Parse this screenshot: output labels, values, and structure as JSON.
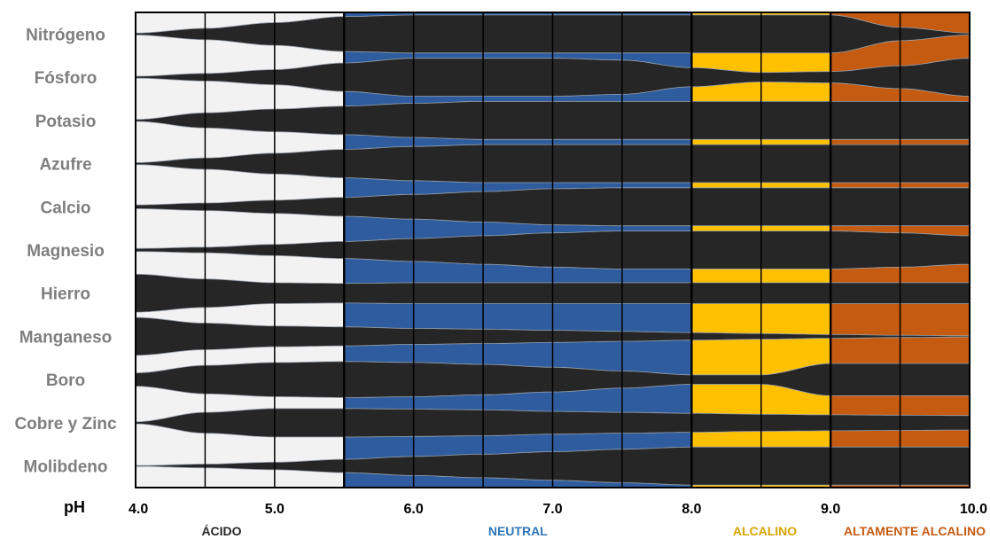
{
  "chart_data": {
    "type": "area",
    "title": "",
    "xlabel": "pH",
    "ylabel": "",
    "xlim": [
      4.0,
      10.0
    ],
    "x_ticks": [
      "4.0",
      "5.0",
      "6.0",
      "7.0",
      "8.0",
      "9.0",
      "10.0"
    ],
    "x_tick_values": [
      4,
      5,
      6,
      7,
      8,
      9,
      10
    ],
    "grid_x": [
      4.5,
      5,
      5.5,
      6,
      6.5,
      7,
      7.5,
      8,
      8.5,
      9,
      9.5
    ],
    "zones": [
      {
        "label": "ÁCIDO",
        "from": 4.0,
        "to": 5.5,
        "color": "#f2f2f2",
        "label_color": "#262626"
      },
      {
        "label": "NEUTRAL",
        "from": 5.5,
        "to": 8.0,
        "color": "#2e5c9e",
        "label_color": "#2e75b6"
      },
      {
        "label": "ALCALINO",
        "from": 8.0,
        "to": 9.0,
        "color": "#ffc000",
        "label_color": "#d6a300"
      },
      {
        "label": "ALTAMENTE ALCALINO",
        "from": 9.0,
        "to": 10.0,
        "color": "#c55a11",
        "label_color": "#c55a11"
      }
    ],
    "band_color": "#262626",
    "series_value_note_scale": [
      0,
      1
    ],
    "series": [
      {
        "name": "Nitrógeno",
        "ph": [
          4.0,
          4.5,
          5.0,
          5.5,
          6.0,
          6.5,
          7.0,
          7.5,
          8.0,
          8.5,
          9.0,
          9.5,
          10.0
        ],
        "availability": [
          0.05,
          0.3,
          0.6,
          0.92,
          1.0,
          1.0,
          1.0,
          1.0,
          1.0,
          1.0,
          1.0,
          0.35,
          0.05
        ]
      },
      {
        "name": "Fósforo",
        "ph": [
          4.0,
          4.5,
          5.0,
          5.5,
          6.0,
          6.5,
          7.0,
          7.5,
          8.0,
          8.5,
          9.0,
          9.5,
          10.0
        ],
        "availability": [
          0.05,
          0.2,
          0.4,
          0.75,
          1.0,
          1.0,
          1.0,
          0.9,
          0.5,
          0.25,
          0.3,
          0.6,
          1.0
        ]
      },
      {
        "name": "Potasio",
        "ph": [
          4.0,
          4.5,
          5.0,
          5.5,
          6.0,
          6.5,
          7.0,
          7.5,
          8.0,
          8.5,
          9.0,
          9.5,
          10.0
        ],
        "availability": [
          0.05,
          0.4,
          0.6,
          0.75,
          0.9,
          1.0,
          1.0,
          1.0,
          1.0,
          1.0,
          1.0,
          1.0,
          1.0
        ]
      },
      {
        "name": "Azufre",
        "ph": [
          4.0,
          4.5,
          5.0,
          5.5,
          6.0,
          6.5,
          7.0,
          7.5,
          8.0,
          8.5,
          9.0,
          9.5,
          10.0
        ],
        "availability": [
          0.05,
          0.3,
          0.55,
          0.75,
          0.9,
          1.0,
          1.0,
          1.0,
          1.0,
          1.0,
          1.0,
          1.0,
          1.0
        ]
      },
      {
        "name": "Calcio",
        "ph": [
          4.0,
          4.5,
          5.0,
          5.5,
          6.0,
          6.5,
          7.0,
          7.5,
          8.0,
          8.5,
          9.0,
          9.5,
          10.0
        ],
        "availability": [
          0.1,
          0.2,
          0.35,
          0.5,
          0.65,
          0.8,
          0.95,
          1.0,
          1.0,
          1.0,
          1.0,
          1.0,
          1.0
        ]
      },
      {
        "name": "Magnesio",
        "ph": [
          4.0,
          4.5,
          5.0,
          5.5,
          6.0,
          6.5,
          7.0,
          7.5,
          8.0,
          8.5,
          9.0,
          9.5,
          10.0
        ],
        "availability": [
          0.08,
          0.15,
          0.3,
          0.45,
          0.6,
          0.75,
          0.9,
          1.0,
          1.0,
          1.0,
          1.0,
          0.9,
          0.75
        ]
      },
      {
        "name": "Hierro",
        "ph": [
          4.0,
          4.5,
          5.0,
          5.5,
          6.0,
          6.5,
          7.0,
          7.5,
          8.0,
          8.5,
          9.0,
          9.5,
          10.0
        ],
        "availability": [
          1.0,
          0.75,
          0.55,
          0.52,
          0.55,
          0.55,
          0.55,
          0.55,
          0.55,
          0.55,
          0.55,
          0.55,
          0.55
        ]
      },
      {
        "name": "Manganeso",
        "ph": [
          4.0,
          4.5,
          5.0,
          5.5,
          6.0,
          6.5,
          7.0,
          7.5,
          8.0,
          8.5,
          9.0,
          9.5,
          10.0
        ],
        "availability": [
          1.0,
          0.7,
          0.55,
          0.5,
          0.42,
          0.38,
          0.32,
          0.26,
          0.2,
          0.15,
          0.1,
          0.06,
          0.03
        ]
      },
      {
        "name": "Boro",
        "ph": [
          4.0,
          4.5,
          5.0,
          5.5,
          6.0,
          6.5,
          7.0,
          7.5,
          8.0,
          8.5,
          9.0,
          9.5,
          10.0
        ],
        "availability": [
          0.35,
          0.75,
          0.9,
          0.95,
          0.9,
          0.8,
          0.65,
          0.45,
          0.25,
          0.25,
          0.85,
          0.85,
          0.85
        ]
      },
      {
        "name": "Cobre y Zinc",
        "ph": [
          4.0,
          4.5,
          5.0,
          5.5,
          6.0,
          6.5,
          7.0,
          7.5,
          8.0,
          8.5,
          9.0,
          9.5,
          10.0
        ],
        "availability": [
          0.05,
          0.55,
          0.75,
          0.75,
          0.72,
          0.68,
          0.6,
          0.55,
          0.5,
          0.45,
          0.42,
          0.4,
          0.38
        ]
      },
      {
        "name": "Molibdeno",
        "ph": [
          4.0,
          4.5,
          5.0,
          5.5,
          6.0,
          6.5,
          7.0,
          7.5,
          8.0,
          8.5,
          9.0,
          9.5,
          10.0
        ],
        "availability": [
          0.02,
          0.1,
          0.2,
          0.35,
          0.5,
          0.62,
          0.75,
          0.88,
          1.0,
          1.0,
          1.0,
          1.0,
          1.0
        ]
      }
    ]
  }
}
